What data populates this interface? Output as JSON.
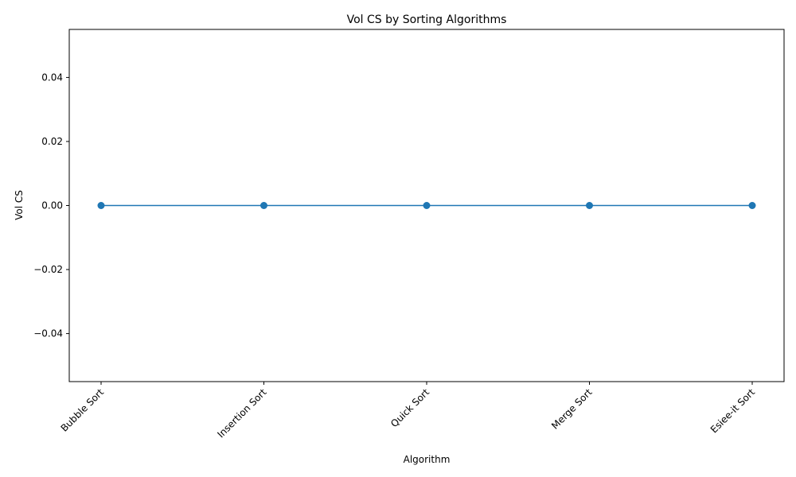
{
  "chart_data": {
    "type": "line",
    "title": "Vol CS by Sorting Algorithms",
    "xlabel": "Algorithm",
    "ylabel": "Vol CS",
    "categories": [
      "Bubble Sort",
      "Insertion Sort",
      "Quick Sort",
      "Merge Sort",
      "Esiee-it Sort"
    ],
    "series": [
      {
        "values": [
          0,
          0,
          0,
          0,
          0
        ]
      }
    ],
    "ylim": [
      -0.055,
      0.055
    ],
    "yticks": [
      -0.04,
      -0.02,
      0.0,
      0.02,
      0.04
    ],
    "ytick_labels": [
      "−0.04",
      "−0.02",
      "0.00",
      "0.02",
      "0.04"
    ],
    "grid": false,
    "markers": true,
    "line_color": "#1f77b4",
    "xtick_rotation_deg": 45
  }
}
